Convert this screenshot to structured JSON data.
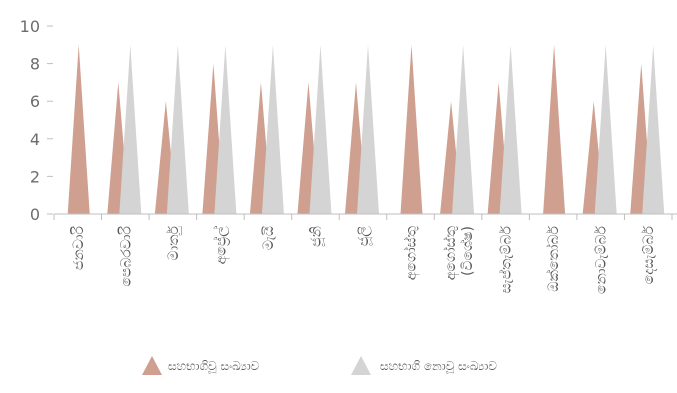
{
  "chart_data": {
    "type": "area",
    "mark": "triangle",
    "categories": [
      "ජනවාරි",
      "පෙබරවාරි",
      "මාර්තු",
      "අප්‍රේල්",
      "මැයි",
      "ජූනි",
      "ජූලි",
      "අගෝස්තු",
      "අගෝස්තු (විශේෂ)",
      "සැප්තැම්බර්",
      "ඔක්තෝබර්",
      "නොවැම්බර්",
      "දෙසැම්බර්"
    ],
    "series": [
      {
        "name": "සහභාගිවූ සංඛ්‍යාව",
        "color": "#cfa090",
        "values": [
          9,
          7,
          6,
          8,
          7,
          7,
          7,
          9,
          6,
          7,
          9,
          6,
          8
        ]
      },
      {
        "name": "සහභාගි නොවූ සංඛ්‍යාව",
        "color": "#d4d4d4",
        "values": [
          null,
          9,
          9,
          9,
          9,
          9,
          9,
          null,
          9,
          9,
          null,
          9,
          9
        ]
      }
    ],
    "y_ticks": [
      "0",
      "2",
      "4",
      "6",
      "8",
      "10"
    ],
    "ylim": [
      0,
      10
    ],
    "grid": false,
    "legend_position": "bottom"
  }
}
